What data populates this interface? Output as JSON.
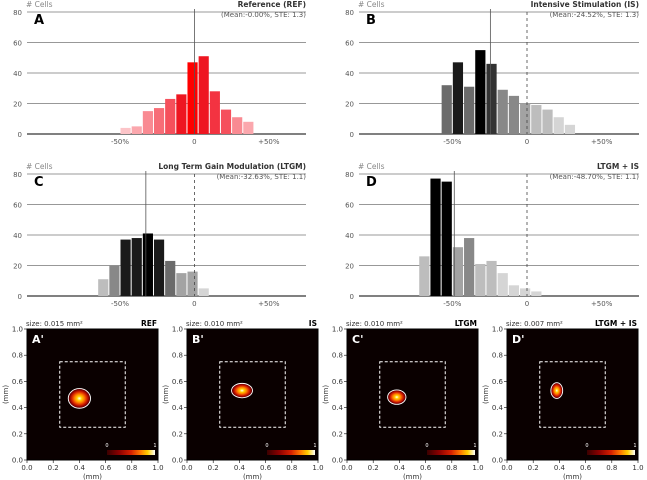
{
  "colors": {
    "red_scale": [
      "#fde0e2",
      "#fcc4c8",
      "#fba7ad",
      "#f98a92",
      "#f76d77",
      "#f5505c",
      "#f33341",
      "#ee1621",
      "#ff0000"
    ],
    "gray_scale": [
      "#f5f5f5",
      "#e8e8e8",
      "#d5d5d5",
      "#bdbdbd",
      "#a3a3a3",
      "#888888",
      "#6b6b6b",
      "#4f4f4f",
      "#333333",
      "#1a1a1a",
      "#000000"
    ],
    "heatmap": [
      "#000000",
      "#3a0000",
      "#8b0000",
      "#d62000",
      "#ff7a00",
      "#ffd000",
      "#ffffff"
    ],
    "heatmap_bg": "#0a0000"
  },
  "chart_data": [
    {
      "type": "bar",
      "panel": "A",
      "title": "Reference (REF)",
      "subtitle": "(Mean:-0.00%, STE: 1.3)",
      "ylabel": "# Cells",
      "ylim": [
        0,
        80
      ],
      "yticks": [
        "0",
        "20",
        "40",
        "60",
        "80"
      ],
      "xlim": [
        -112.5,
        75
      ],
      "xticks": [
        -50,
        0,
        50
      ],
      "xtick_labels": [
        "-50%",
        "0",
        "+50%"
      ],
      "bin_width": 7.5,
      "bins": [
        -50,
        -42.5,
        -35,
        -27.5,
        -20,
        -12.5,
        -5,
        2.5,
        10,
        17.5,
        25,
        32.5,
        40
      ],
      "values": [
        4,
        5,
        15,
        17,
        23,
        26,
        47,
        51,
        28,
        16,
        11,
        8,
        0
      ],
      "mean_line": 0,
      "zero_line": 0,
      "palette": "red"
    },
    {
      "type": "bar",
      "panel": "B",
      "title": "Intensive Stimulation (IS)",
      "subtitle": "(Mean:-24.52%, STE: 1.3)",
      "ylabel": "# Cells",
      "ylim": [
        0,
        80
      ],
      "yticks": [
        "0",
        "20",
        "40",
        "60",
        "80"
      ],
      "xlim": [
        -112.5,
        75
      ],
      "xticks": [
        -50,
        0,
        50
      ],
      "xtick_labels": [
        "-50%",
        "0",
        "+50%"
      ],
      "bin_width": 7.5,
      "bins": [
        -72.5,
        -65,
        -57.5,
        -50,
        -42.5,
        -35,
        -27.5,
        -20,
        -12.5,
        -5,
        2.5,
        10,
        17.5,
        25,
        32.5
      ],
      "values": [
        0,
        0,
        32,
        47,
        31,
        55,
        46,
        29,
        25,
        20,
        19,
        16,
        11,
        6,
        0
      ],
      "mean_line": -24.52,
      "zero_line": 0,
      "palette": "gray"
    },
    {
      "type": "bar",
      "panel": "C",
      "title": "Long Term Gain Modulation (LTGM)",
      "subtitle": "(Mean:-32.63%, STE: 1.1)",
      "ylabel": "# Cells",
      "ylim": [
        0,
        80
      ],
      "yticks": [
        "0",
        "20",
        "40",
        "60",
        "80"
      ],
      "xlim": [
        -112.5,
        75
      ],
      "xticks": [
        -50,
        0,
        50
      ],
      "xtick_labels": [
        "-50%",
        "0",
        "+50%"
      ],
      "bin_width": 7.5,
      "bins": [
        -65,
        -57.5,
        -50,
        -42.5,
        -35,
        -27.5,
        -20,
        -12.5,
        -5,
        2.5,
        10
      ],
      "values": [
        11,
        20,
        37,
        38,
        41,
        37,
        23,
        15,
        16,
        5,
        0
      ],
      "mean_line": -32.63,
      "zero_line": 0,
      "palette": "gray"
    },
    {
      "type": "bar",
      "panel": "D",
      "title": "LTGM + IS",
      "subtitle": "(Mean:-48.70%, STE: 1.1)",
      "ylabel": "# Cells",
      "ylim": [
        0,
        80
      ],
      "yticks": [
        "0",
        "20",
        "40",
        "60",
        "80"
      ],
      "xlim": [
        -112.5,
        75
      ],
      "xticks": [
        -50,
        0,
        50
      ],
      "xtick_labels": [
        "-50%",
        "0",
        "+50%"
      ],
      "bin_width": 7.5,
      "bins": [
        -87.5,
        -80,
        -72.5,
        -65,
        -57.5,
        -50,
        -42.5,
        -35,
        -27.5,
        -20,
        -12.5,
        -5,
        2.5,
        10,
        17.5
      ],
      "values": [
        0,
        0,
        26,
        77,
        75,
        32,
        38,
        21,
        23,
        15,
        7,
        5,
        3,
        0,
        0
      ],
      "mean_line": -48.7,
      "zero_line": 0,
      "palette": "gray"
    },
    {
      "type": "heatmap",
      "panel": "A'",
      "label": "REF",
      "size_text": "size: 0.015 mm²",
      "xlabel": "(mm)",
      "ylabel": "(mm)",
      "xlim": [
        0,
        1
      ],
      "ylim": [
        0,
        1
      ],
      "ticks": [
        "0.0",
        "0.2",
        "0.4",
        "0.6",
        "0.8",
        "1.0"
      ],
      "roi": [
        0.25,
        0.75,
        0.25,
        0.75
      ],
      "blob": {
        "cx": 0.4,
        "cy": 0.47,
        "rx": 0.085,
        "ry": 0.075
      },
      "colorbar_labels": [
        "0",
        "1"
      ]
    },
    {
      "type": "heatmap",
      "panel": "B'",
      "label": "IS",
      "size_text": "size: 0.010 mm²",
      "xlabel": "(mm)",
      "ylabel": "(mm)",
      "xlim": [
        0,
        1
      ],
      "ylim": [
        0,
        1
      ],
      "ticks": [
        "0.0",
        "0.2",
        "0.4",
        "0.6",
        "0.8",
        "1.0"
      ],
      "roi": [
        0.25,
        0.75,
        0.25,
        0.75
      ],
      "blob": {
        "cx": 0.42,
        "cy": 0.53,
        "rx": 0.08,
        "ry": 0.055
      },
      "colorbar_labels": [
        "0",
        "1"
      ]
    },
    {
      "type": "heatmap",
      "panel": "C'",
      "label": "LTGM",
      "size_text": "size: 0.010 mm²",
      "xlabel": "(mm)",
      "ylabel": "(mm)",
      "xlim": [
        0,
        1
      ],
      "ylim": [
        0,
        1
      ],
      "ticks": [
        "0.0",
        "0.2",
        "0.4",
        "0.6",
        "0.8",
        "1.0"
      ],
      "roi": [
        0.25,
        0.75,
        0.25,
        0.75
      ],
      "blob": {
        "cx": 0.38,
        "cy": 0.48,
        "rx": 0.07,
        "ry": 0.055
      },
      "colorbar_labels": [
        "0",
        "1"
      ]
    },
    {
      "type": "heatmap",
      "panel": "D'",
      "label": "LTGM + IS",
      "size_text": "size: 0.007 mm²",
      "xlabel": "(mm)",
      "ylabel": "(mm)",
      "xlim": [
        0,
        1
      ],
      "ylim": [
        0,
        1
      ],
      "ticks": [
        "0.0",
        "0.2",
        "0.4",
        "0.6",
        "0.8",
        "1.0"
      ],
      "roi": [
        0.25,
        0.75,
        0.25,
        0.75
      ],
      "blob": {
        "cx": 0.38,
        "cy": 0.53,
        "rx": 0.045,
        "ry": 0.06
      },
      "colorbar_labels": [
        "0",
        "1"
      ]
    }
  ]
}
